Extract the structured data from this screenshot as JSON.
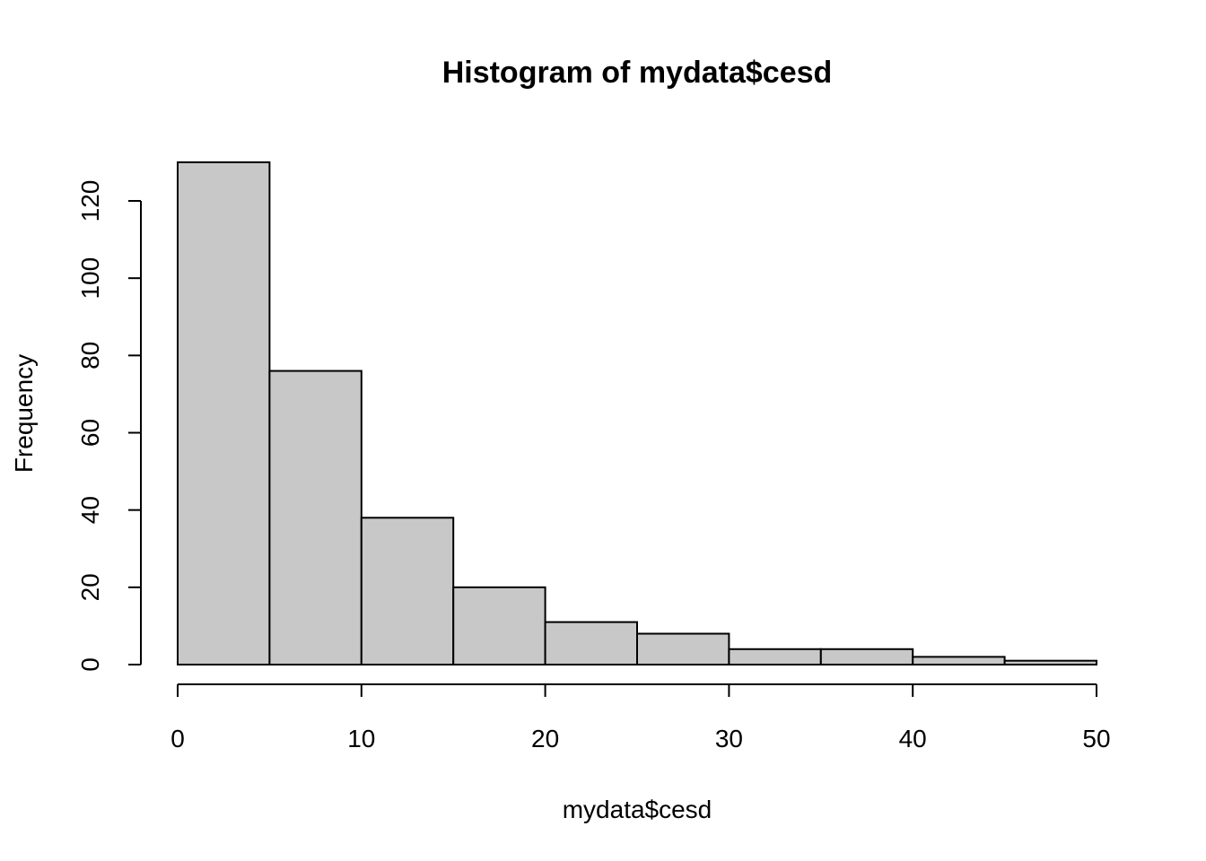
{
  "chart_data": {
    "type": "bar",
    "subtype": "histogram",
    "title": "Histogram of mydata$cesd",
    "xlabel": "mydata$cesd",
    "ylabel": "Frequency",
    "bins": [
      {
        "start": 0,
        "end": 5,
        "count": 130
      },
      {
        "start": 5,
        "end": 10,
        "count": 76
      },
      {
        "start": 10,
        "end": 15,
        "count": 38
      },
      {
        "start": 15,
        "end": 20,
        "count": 20
      },
      {
        "start": 20,
        "end": 25,
        "count": 11
      },
      {
        "start": 25,
        "end": 30,
        "count": 8
      },
      {
        "start": 30,
        "end": 35,
        "count": 4
      },
      {
        "start": 35,
        "end": 40,
        "count": 4
      },
      {
        "start": 40,
        "end": 45,
        "count": 2
      },
      {
        "start": 45,
        "end": 50,
        "count": 1
      }
    ],
    "xlim": [
      0,
      50
    ],
    "ylim": [
      0,
      130
    ],
    "xticks": [
      0,
      10,
      20,
      30,
      40,
      50
    ],
    "yticks": [
      0,
      20,
      40,
      60,
      80,
      100,
      120
    ],
    "grid": false,
    "colors": {
      "bar_fill": "#c8c8c8",
      "bar_stroke": "#000000",
      "axis": "#000000",
      "text": "#000000"
    }
  }
}
